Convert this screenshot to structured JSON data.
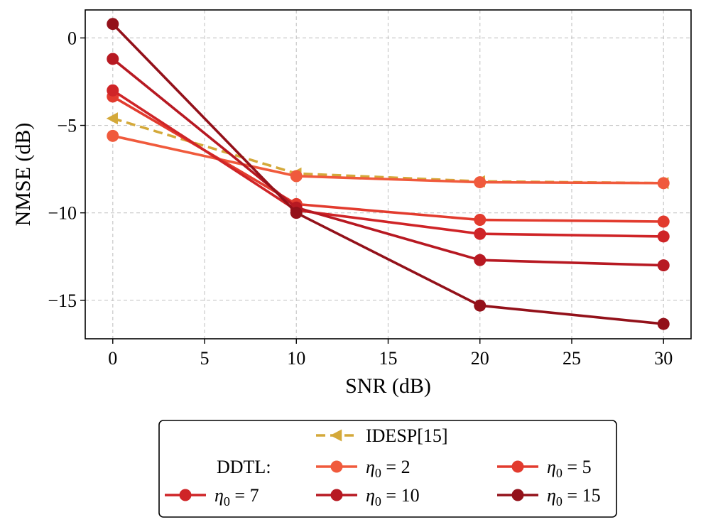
{
  "chart_data": {
    "type": "line",
    "xlabel": "SNR (dB)",
    "ylabel": "NMSE (dB)",
    "xlim": [
      -1.5,
      31.5
    ],
    "ylim": [
      -17.2,
      1.6
    ],
    "xticks": [
      0,
      5,
      10,
      15,
      20,
      25,
      30
    ],
    "yticks": [
      0,
      -5,
      -10,
      -15
    ],
    "xtick_labels": [
      "0",
      "5",
      "10",
      "15",
      "20",
      "25",
      "30"
    ],
    "ytick_labels": [
      "0",
      "−5",
      "−10",
      "−15"
    ],
    "grid": true,
    "legend_position": "below",
    "legend_group_label": "DDTL:",
    "x": [
      0,
      10,
      20,
      30
    ],
    "series": [
      {
        "name": "IDESP[15]",
        "legend": "IDESP[15]",
        "eta": "",
        "values": [
          -4.6,
          -7.75,
          -8.2,
          -8.3
        ],
        "color": "#d4a93a",
        "marker": "triangle-left",
        "linestyle": "dashed"
      },
      {
        "name": "η₀ = 2",
        "legend": "η",
        "eta": "2",
        "values": [
          -5.6,
          -7.9,
          -8.25,
          -8.3
        ],
        "color": "#f05a3c",
        "marker": "circle",
        "linestyle": "solid"
      },
      {
        "name": "η₀ = 5",
        "legend": "η",
        "eta": "5",
        "values": [
          -3.35,
          -9.5,
          -10.4,
          -10.5
        ],
        "color": "#e23b2e",
        "marker": "circle",
        "linestyle": "solid"
      },
      {
        "name": "η₀ = 7",
        "legend": "η",
        "eta": "7",
        "values": [
          -3.0,
          -9.85,
          -11.2,
          -11.35
        ],
        "color": "#cf2427",
        "marker": "circle",
        "linestyle": "solid"
      },
      {
        "name": "η₀ = 10",
        "legend": "η",
        "eta": "10",
        "values": [
          -1.2,
          -9.7,
          -12.7,
          -13.0
        ],
        "color": "#b71922",
        "marker": "circle",
        "linestyle": "solid"
      },
      {
        "name": "η₀ = 15",
        "legend": "η",
        "eta": "15",
        "values": [
          0.8,
          -10.0,
          -15.3,
          -16.35
        ],
        "color": "#93111a",
        "marker": "circle",
        "linestyle": "solid"
      }
    ]
  }
}
